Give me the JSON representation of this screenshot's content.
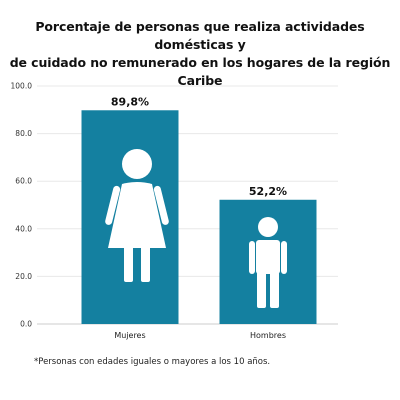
{
  "chart_data": {
    "type": "bar",
    "title_lines": [
      "Porcentaje de personas que realiza actividades domésticas y",
      "de cuidado no remunerado en los hogares de la región Caribe"
    ],
    "categories": [
      "Mujeres",
      "Hombres"
    ],
    "values": [
      89.8,
      52.2
    ],
    "data_labels": [
      "89,8%",
      "52,2%"
    ],
    "icons": [
      "female-person-icon",
      "male-person-icon"
    ],
    "ylim": [
      0,
      100
    ],
    "yticks": [
      0,
      20,
      40,
      60,
      80,
      100
    ],
    "ytick_labels": [
      "0.0",
      "20.0",
      "40.0",
      "60.0",
      "80.0",
      "100.0"
    ],
    "grid": true,
    "bar_color": "#1480a0",
    "icon_color": "#ffffff",
    "xlabel": "",
    "ylabel": "",
    "footnote": "*Personas con edades iguales o mayores a los 10 años."
  }
}
